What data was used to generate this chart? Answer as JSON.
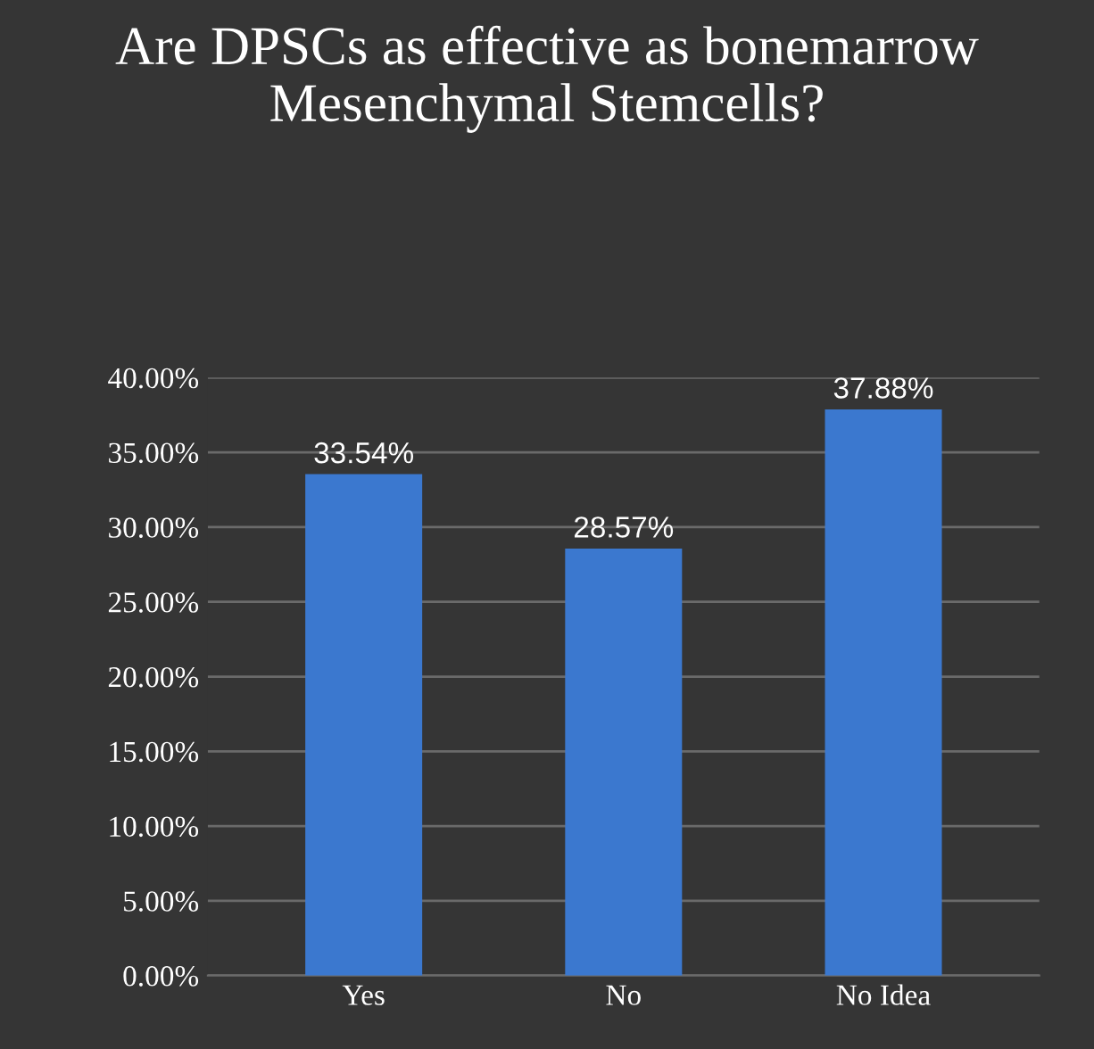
{
  "chart_data": {
    "type": "bar",
    "title": "Are DPSCs as effective as bonemarrow Mesenchymal Stemcells?",
    "categories": [
      "Yes",
      "No",
      "No Idea"
    ],
    "values": [
      33.54,
      28.57,
      37.88
    ],
    "value_labels": [
      "33.54%",
      "28.57%",
      "37.88%"
    ],
    "color": "#3b78cf",
    "ylim": [
      0,
      40
    ],
    "yticks": [
      {
        "value": 0,
        "label": "0.00%"
      },
      {
        "value": 5,
        "label": "5.00%"
      },
      {
        "value": 10,
        "label": "10.00%"
      },
      {
        "value": 15,
        "label": "15.00%"
      },
      {
        "value": 20,
        "label": "20.00%"
      },
      {
        "value": 25,
        "label": "25.00%"
      },
      {
        "value": 30,
        "label": "30.00%"
      },
      {
        "value": 35,
        "label": "35.00%"
      },
      {
        "value": 40,
        "label": "40.00%"
      }
    ],
    "grid": "y"
  }
}
